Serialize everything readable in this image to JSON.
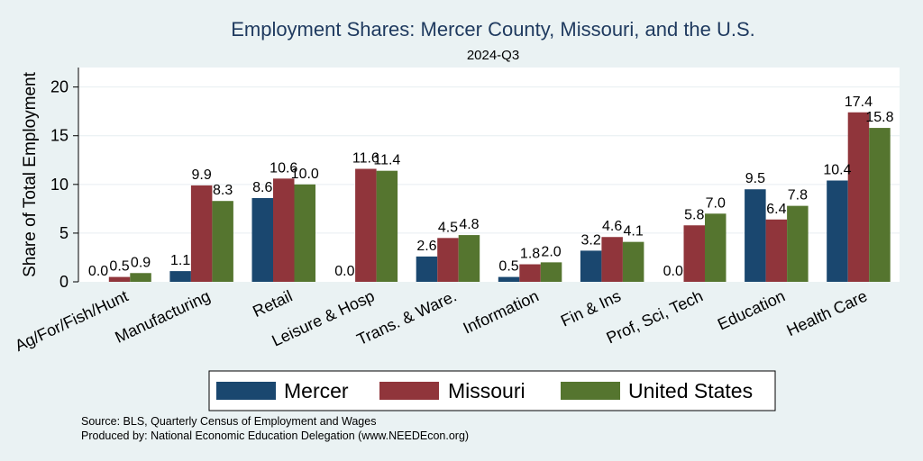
{
  "chart_data": {
    "type": "bar",
    "title": "Employment Shares: Mercer County, Missouri, and the U.S.",
    "subtitle": "2024-Q3",
    "ylabel": "Share of Total Employment",
    "xlabel": "",
    "ylim": [
      0,
      22
    ],
    "yticks": [
      "0",
      "5",
      "10",
      "15",
      "20"
    ],
    "grid": true,
    "legend_position": "bottom",
    "categories": [
      "Ag/For/Fish/Hunt",
      "Manufacturing",
      "Retail",
      "Leisure & Hosp",
      "Trans. & Ware.",
      "Information",
      "Fin & Ins",
      "Prof, Sci, Tech",
      "Education",
      "Health Care"
    ],
    "series": [
      {
        "name": "Mercer",
        "color": "#1a476f",
        "values": [
          0.0,
          1.1,
          8.6,
          0.0,
          2.6,
          0.5,
          3.2,
          0.0,
          9.5,
          10.4
        ],
        "labels": [
          "0.0",
          "1.1",
          "8.6",
          "0.0",
          "2.6",
          "0.5",
          "3.2",
          "0.0",
          "9.5",
          "10.4"
        ]
      },
      {
        "name": "Missouri",
        "color": "#90353b",
        "values": [
          0.5,
          9.9,
          10.6,
          11.6,
          4.5,
          1.8,
          4.6,
          5.8,
          6.4,
          17.4
        ],
        "labels": [
          "0.5",
          "9.9",
          "10.6",
          "11.6",
          "4.5",
          "1.8",
          "4.6",
          "5.8",
          "6.4",
          "17.4"
        ]
      },
      {
        "name": "United States",
        "color": "#55752f",
        "values": [
          0.9,
          8.3,
          10.0,
          11.4,
          4.8,
          2.0,
          4.1,
          7.0,
          7.8,
          15.8
        ],
        "labels": [
          "0.9",
          "8.3",
          "10.0",
          "11.4",
          "4.8",
          "2.0",
          "4.1",
          "7.0",
          "7.8",
          "15.8"
        ]
      }
    ]
  },
  "notes": {
    "source": "Source: BLS, Quarterly Census of Employment and Wages",
    "produced": "Produced by: National Economic Education Delegation (www.NEEDEcon.org)"
  }
}
